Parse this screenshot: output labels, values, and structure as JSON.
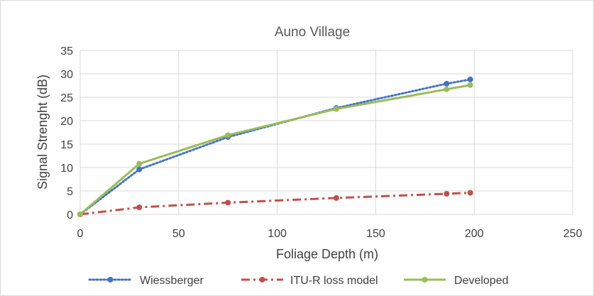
{
  "chart_data": {
    "type": "line",
    "title": "Auno Village",
    "xlabel": "Foliage Depth (m)",
    "ylabel": "Signal Strenght (dB)",
    "xlim": [
      0,
      250
    ],
    "ylim": [
      0,
      35
    ],
    "xticks": [
      "0",
      "50",
      "100",
      "150",
      "200",
      "250"
    ],
    "yticks": [
      "0",
      "5",
      "10",
      "15",
      "20",
      "25",
      "30",
      "35"
    ],
    "grid": true,
    "legend_position": "bottom",
    "series": [
      {
        "name": "Wiessberger",
        "color": "#4472c4",
        "line_style": "dotted",
        "x": [
          0,
          30,
          75,
          130,
          186,
          198
        ],
        "y": [
          0,
          9.6,
          16.5,
          22.7,
          27.9,
          28.8
        ]
      },
      {
        "name": "ITU-R loss model",
        "color": "#c0504d",
        "line_style": "dash-dot",
        "x": [
          0,
          30,
          75,
          130,
          186,
          198
        ],
        "y": [
          0,
          1.5,
          2.5,
          3.5,
          4.4,
          4.6
        ]
      },
      {
        "name": "Developed",
        "color": "#9bbb59",
        "line_style": "solid",
        "x": [
          0,
          30,
          75,
          130,
          186,
          198
        ],
        "y": [
          0,
          10.8,
          16.9,
          22.5,
          26.7,
          27.6
        ]
      }
    ]
  }
}
